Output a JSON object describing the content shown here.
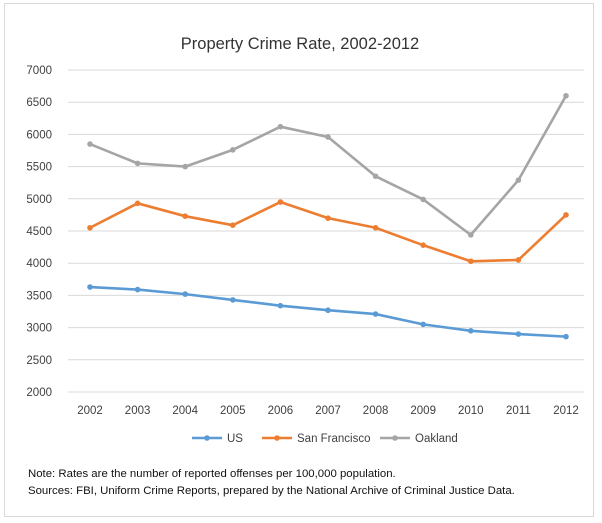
{
  "chart_data": {
    "type": "line",
    "title": "Property Crime Rate, 2002-2012",
    "xlabel": "",
    "ylabel": "",
    "x": [
      "2002",
      "2003",
      "2004",
      "2005",
      "2006",
      "2007",
      "2008",
      "2009",
      "2010",
      "2011",
      "2012"
    ],
    "ylim": [
      2000,
      7000
    ],
    "yticks": [
      2000,
      2500,
      3000,
      3500,
      4000,
      4500,
      5000,
      5500,
      6000,
      6500,
      7000
    ],
    "grid": true,
    "legend_position": "bottom",
    "series": [
      {
        "name": "US",
        "color": "#5b9bd5",
        "values": [
          3630,
          3590,
          3520,
          3430,
          3340,
          3270,
          3210,
          3050,
          2950,
          2900,
          2860
        ]
      },
      {
        "name": "San Francisco",
        "color": "#ed7d31",
        "values": [
          4550,
          4930,
          4730,
          4590,
          4950,
          4700,
          4550,
          4280,
          4030,
          4050,
          4750
        ]
      },
      {
        "name": "Oakland",
        "color": "#a5a5a5",
        "values": [
          5850,
          5550,
          5500,
          5760,
          6120,
          5960,
          5350,
          4990,
          4440,
          5290,
          6600
        ]
      }
    ]
  },
  "notes": [
    "Note: Rates are the number of reported offenses per 100,000 population.",
    "Sources: FBI, Uniform Crime Reports, prepared by the National Archive of Criminal Justice Data."
  ]
}
